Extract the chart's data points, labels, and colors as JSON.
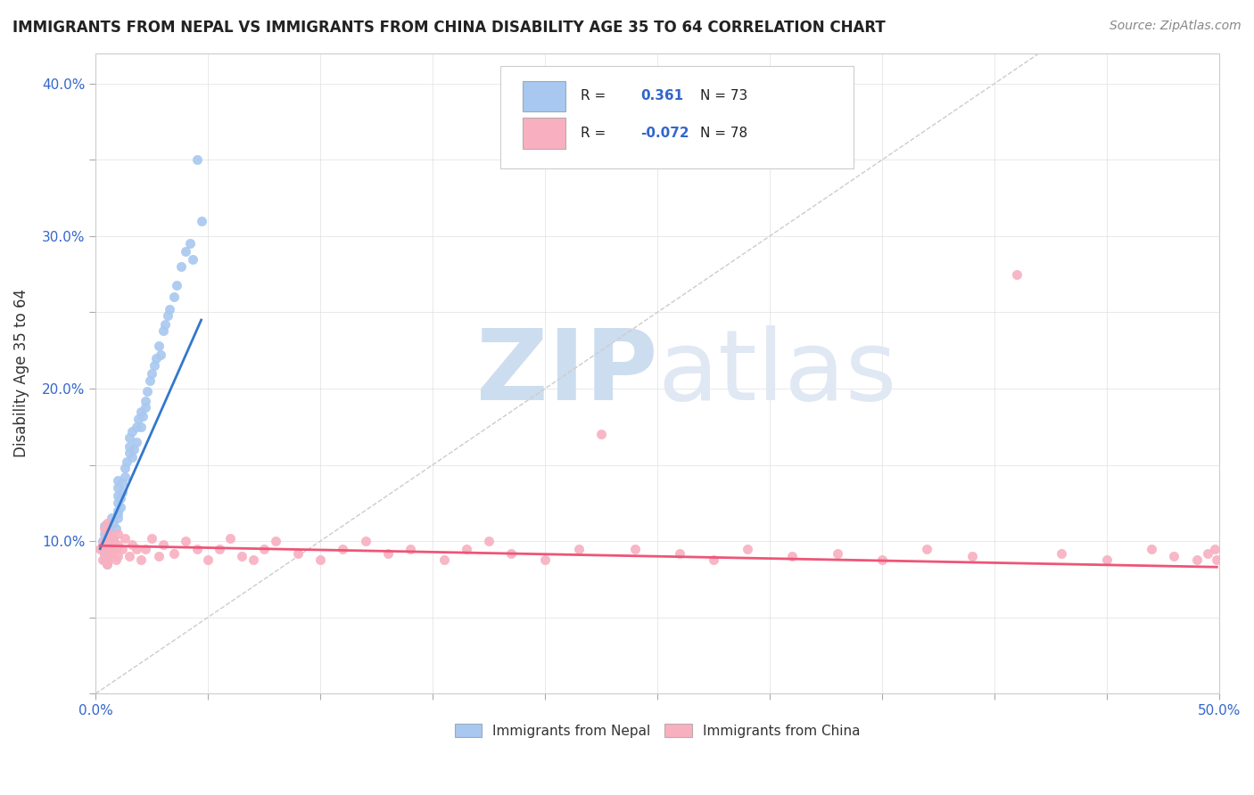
{
  "title": "IMMIGRANTS FROM NEPAL VS IMMIGRANTS FROM CHINA DISABILITY AGE 35 TO 64 CORRELATION CHART",
  "source": "Source: ZipAtlas.com",
  "ylabel": "Disability Age 35 to 64",
  "xlim": [
    0.0,
    0.5
  ],
  "ylim": [
    0.0,
    0.42
  ],
  "nepal_R": "0.361",
  "nepal_N": "73",
  "china_R": "-0.072",
  "china_N": "78",
  "nepal_color": "#a8c8f0",
  "china_color": "#f8b0c0",
  "nepal_line_color": "#3377cc",
  "china_line_color": "#ee5577",
  "diag_line_color": "#cccccc",
  "watermark_color": "#ccddf0",
  "nepal_scatter_x": [
    0.003,
    0.003,
    0.004,
    0.004,
    0.004,
    0.004,
    0.004,
    0.005,
    0.005,
    0.005,
    0.005,
    0.005,
    0.005,
    0.005,
    0.005,
    0.005,
    0.006,
    0.006,
    0.006,
    0.006,
    0.007,
    0.007,
    0.007,
    0.008,
    0.008,
    0.009,
    0.01,
    0.01,
    0.01,
    0.01,
    0.01,
    0.01,
    0.01,
    0.011,
    0.011,
    0.012,
    0.012,
    0.013,
    0.013,
    0.014,
    0.015,
    0.015,
    0.015,
    0.016,
    0.016,
    0.017,
    0.018,
    0.018,
    0.019,
    0.02,
    0.02,
    0.021,
    0.022,
    0.022,
    0.023,
    0.024,
    0.025,
    0.026,
    0.027,
    0.028,
    0.029,
    0.03,
    0.031,
    0.032,
    0.033,
    0.035,
    0.036,
    0.038,
    0.04,
    0.042,
    0.043,
    0.045,
    0.047
  ],
  "nepal_scatter_y": [
    0.095,
    0.1,
    0.088,
    0.092,
    0.098,
    0.105,
    0.11,
    0.085,
    0.09,
    0.095,
    0.1,
    0.105,
    0.11,
    0.088,
    0.093,
    0.098,
    0.092,
    0.097,
    0.103,
    0.108,
    0.095,
    0.102,
    0.115,
    0.1,
    0.112,
    0.108,
    0.115,
    0.12,
    0.125,
    0.13,
    0.135,
    0.14,
    0.118,
    0.122,
    0.128,
    0.132,
    0.138,
    0.142,
    0.148,
    0.152,
    0.158,
    0.162,
    0.168,
    0.172,
    0.155,
    0.16,
    0.165,
    0.175,
    0.18,
    0.185,
    0.175,
    0.182,
    0.188,
    0.192,
    0.198,
    0.205,
    0.21,
    0.215,
    0.22,
    0.228,
    0.222,
    0.238,
    0.242,
    0.248,
    0.252,
    0.26,
    0.268,
    0.28,
    0.29,
    0.295,
    0.285,
    0.35,
    0.31
  ],
  "china_scatter_x": [
    0.002,
    0.003,
    0.003,
    0.004,
    0.004,
    0.004,
    0.005,
    0.005,
    0.005,
    0.005,
    0.005,
    0.005,
    0.005,
    0.005,
    0.005,
    0.006,
    0.006,
    0.006,
    0.007,
    0.007,
    0.008,
    0.008,
    0.009,
    0.009,
    0.01,
    0.01,
    0.01,
    0.012,
    0.013,
    0.015,
    0.016,
    0.018,
    0.02,
    0.022,
    0.025,
    0.028,
    0.03,
    0.035,
    0.04,
    0.045,
    0.05,
    0.055,
    0.06,
    0.065,
    0.07,
    0.075,
    0.08,
    0.09,
    0.1,
    0.11,
    0.12,
    0.13,
    0.14,
    0.155,
    0.165,
    0.175,
    0.185,
    0.2,
    0.215,
    0.225,
    0.24,
    0.26,
    0.275,
    0.29,
    0.31,
    0.33,
    0.35,
    0.37,
    0.39,
    0.41,
    0.43,
    0.45,
    0.47,
    0.48,
    0.49,
    0.495,
    0.498,
    0.499
  ],
  "china_scatter_y": [
    0.095,
    0.088,
    0.098,
    0.092,
    0.1,
    0.108,
    0.085,
    0.09,
    0.095,
    0.102,
    0.108,
    0.112,
    0.088,
    0.095,
    0.102,
    0.09,
    0.098,
    0.105,
    0.092,
    0.1,
    0.095,
    0.102,
    0.088,
    0.095,
    0.09,
    0.098,
    0.105,
    0.095,
    0.102,
    0.09,
    0.098,
    0.095,
    0.088,
    0.095,
    0.102,
    0.09,
    0.098,
    0.092,
    0.1,
    0.095,
    0.088,
    0.095,
    0.102,
    0.09,
    0.088,
    0.095,
    0.1,
    0.092,
    0.088,
    0.095,
    0.1,
    0.092,
    0.095,
    0.088,
    0.095,
    0.1,
    0.092,
    0.088,
    0.095,
    0.17,
    0.095,
    0.092,
    0.088,
    0.095,
    0.09,
    0.092,
    0.088,
    0.095,
    0.09,
    0.275,
    0.092,
    0.088,
    0.095,
    0.09,
    0.088,
    0.092,
    0.095,
    0.088
  ]
}
